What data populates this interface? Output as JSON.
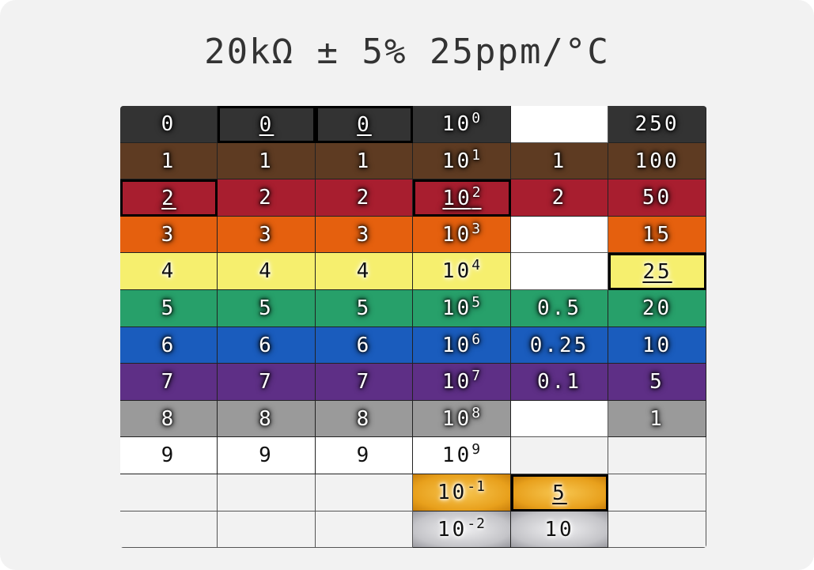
{
  "title": "20kΩ ± 5% 25ppm/°C",
  "colors": {
    "black": "#333333",
    "brown": "#5e3b22",
    "red": "#a81e2f",
    "orange": "#e5600e",
    "yellow": "#f6ef6e",
    "green": "#27a06a",
    "blue": "#1a5cbd",
    "violet": "#5e2f86",
    "grey": "#9a9a9a",
    "white": "#ffffff",
    "gold": "#f2b133",
    "silver": "#c8c8cc"
  },
  "bands": {
    "columns": [
      "digit1",
      "digit2",
      "digit3",
      "multiplier",
      "tolerance",
      "tempco"
    ],
    "rows": [
      {
        "color": "black",
        "digit1": "0",
        "digit2": "0",
        "digit3": "0",
        "mult_base": "10",
        "mult_exp": "0",
        "tolerance": "",
        "tempco": "250"
      },
      {
        "color": "brown",
        "digit1": "1",
        "digit2": "1",
        "digit3": "1",
        "mult_base": "10",
        "mult_exp": "1",
        "tolerance": "1",
        "tempco": "100"
      },
      {
        "color": "red",
        "digit1": "2",
        "digit2": "2",
        "digit3": "2",
        "mult_base": "10",
        "mult_exp": "2",
        "tolerance": "2",
        "tempco": "50"
      },
      {
        "color": "orange",
        "digit1": "3",
        "digit2": "3",
        "digit3": "3",
        "mult_base": "10",
        "mult_exp": "3",
        "tolerance": "",
        "tempco": "15"
      },
      {
        "color": "yellow",
        "digit1": "4",
        "digit2": "4",
        "digit3": "4",
        "mult_base": "10",
        "mult_exp": "4",
        "tolerance": "",
        "tempco": "25"
      },
      {
        "color": "green",
        "digit1": "5",
        "digit2": "5",
        "digit3": "5",
        "mult_base": "10",
        "mult_exp": "5",
        "tolerance": "0.5",
        "tempco": "20"
      },
      {
        "color": "blue",
        "digit1": "6",
        "digit2": "6",
        "digit3": "6",
        "mult_base": "10",
        "mult_exp": "6",
        "tolerance": "0.25",
        "tempco": "10"
      },
      {
        "color": "violet",
        "digit1": "7",
        "digit2": "7",
        "digit3": "7",
        "mult_base": "10",
        "mult_exp": "7",
        "tolerance": "0.1",
        "tempco": "5"
      },
      {
        "color": "grey",
        "digit1": "8",
        "digit2": "8",
        "digit3": "8",
        "mult_base": "10",
        "mult_exp": "8",
        "tolerance": "",
        "tempco": "1"
      },
      {
        "color": "white",
        "digit1": "9",
        "digit2": "9",
        "digit3": "9",
        "mult_base": "10",
        "mult_exp": "9",
        "tolerance": "",
        "tempco": ""
      },
      {
        "color": "gold",
        "digit1": "",
        "digit2": "",
        "digit3": "",
        "mult_base": "10",
        "mult_exp": "-1",
        "tolerance": "5",
        "tempco": ""
      },
      {
        "color": "silver",
        "digit1": "",
        "digit2": "",
        "digit3": "",
        "mult_base": "10",
        "mult_exp": "-2",
        "tolerance": "10",
        "tempco": ""
      }
    ]
  },
  "selected": {
    "digit1": "red",
    "digit2": "black",
    "digit3": "black",
    "multiplier": "red",
    "tolerance": "gold",
    "tempco": "yellow"
  }
}
